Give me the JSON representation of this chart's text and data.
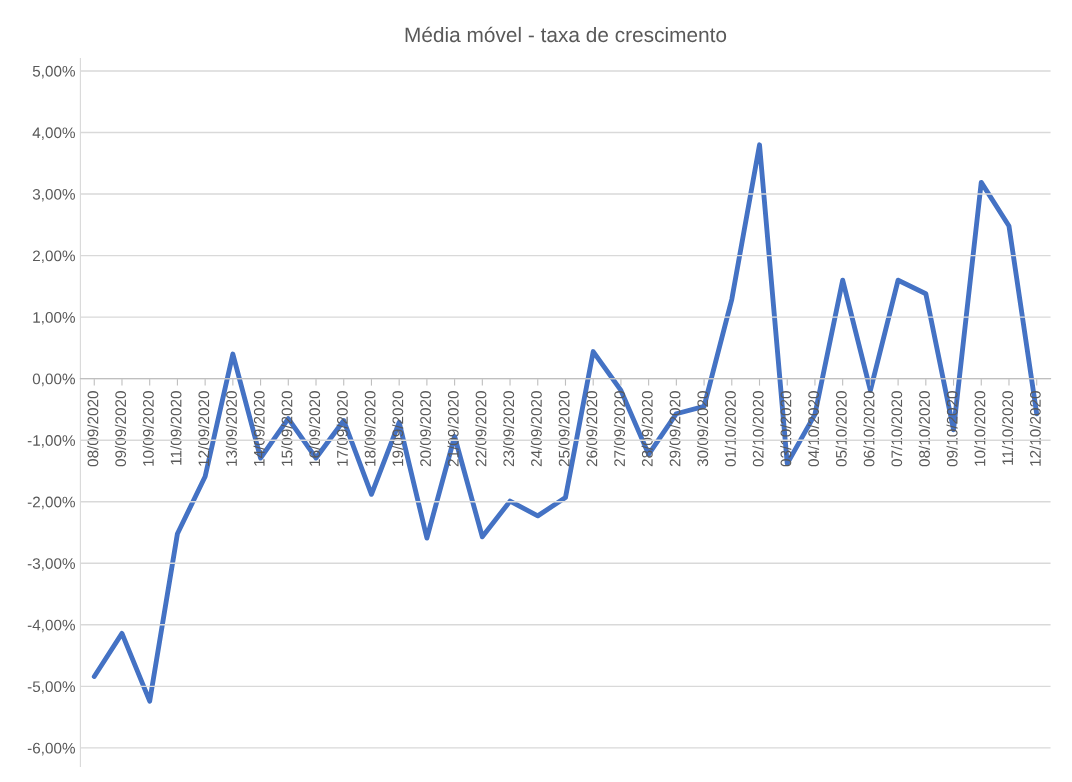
{
  "chart_data": {
    "type": "line",
    "title": "Média móvel - taxa de crescimento",
    "categories": [
      "08/09/2020",
      "09/09/2020",
      "10/09/2020",
      "11/09/2020",
      "12/09/2020",
      "13/09/2020",
      "14/09/2020",
      "15/09/2020",
      "16/09/2020",
      "17/09/2020",
      "18/09/2020",
      "19/09/2020",
      "20/09/2020",
      "21/09/2020",
      "22/09/2020",
      "23/09/2020",
      "24/09/2020",
      "25/09/2020",
      "26/09/2020",
      "27/09/2020",
      "28/09/2020",
      "29/09/2020",
      "30/09/2020",
      "01/10/2020",
      "02/10/2020",
      "03/10/2020",
      "04/10/2020",
      "05/10/2020",
      "06/10/2020",
      "07/10/2020",
      "08/10/2020",
      "09/10/2020",
      "10/10/2020",
      "11/10/2020",
      "12/10/2020"
    ],
    "series": [
      {
        "color": "#4472c4",
        "values": [
          -4.84,
          -4.14,
          -5.24,
          -2.52,
          -1.59,
          0.4,
          -1.29,
          -0.65,
          -1.29,
          -0.68,
          -1.88,
          -0.71,
          -2.59,
          -0.94,
          -2.57,
          -1.99,
          -2.23,
          -1.93,
          0.44,
          -0.19,
          -1.23,
          -0.57,
          -0.45,
          1.29,
          3.8,
          -1.38,
          -0.58,
          1.6,
          -0.19,
          1.6,
          1.38,
          -0.83,
          3.19,
          2.48,
          -0.57
        ]
      }
    ],
    "ylim": [
      -6.3,
      5.2
    ],
    "yticks": [
      {
        "value": -6,
        "label": "-6,00%"
      },
      {
        "value": -5,
        "label": "-5,00%"
      },
      {
        "value": -4,
        "label": "-4,00%"
      },
      {
        "value": -3,
        "label": "-3,00%"
      },
      {
        "value": -2,
        "label": "-2,00%"
      },
      {
        "value": -1,
        "label": "-1,00%"
      },
      {
        "value": 0,
        "label": "0,00%"
      },
      {
        "value": 1,
        "label": "1,00%"
      },
      {
        "value": 2,
        "label": "2,00%"
      },
      {
        "value": 3,
        "label": "3,00%"
      },
      {
        "value": 4,
        "label": "4,00%"
      },
      {
        "value": 5,
        "label": "5,00%"
      }
    ],
    "grid": "y",
    "marker": "none",
    "line_style": "solid"
  }
}
